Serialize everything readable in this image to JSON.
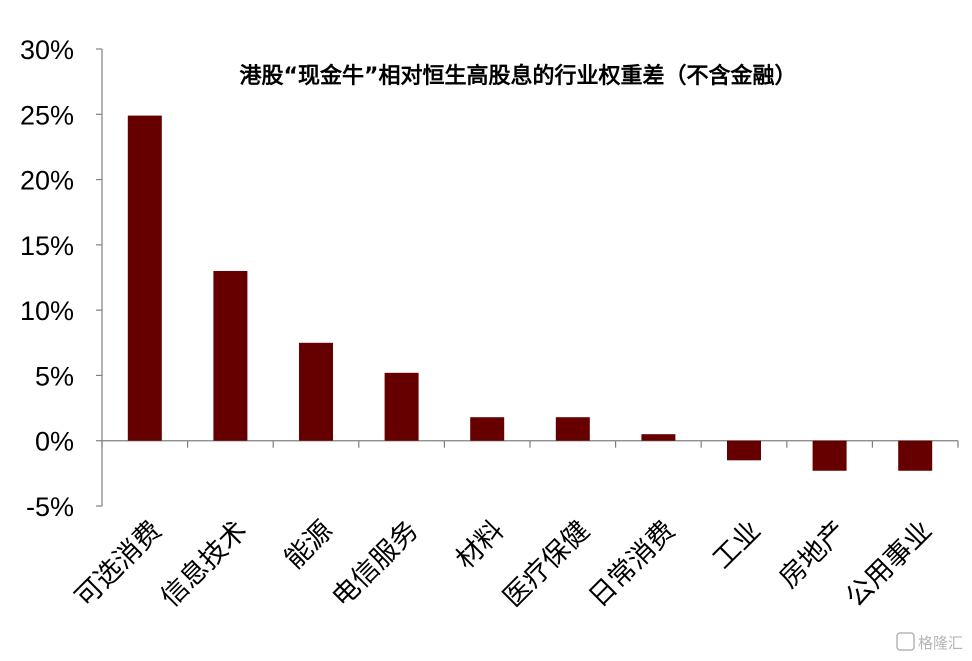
{
  "chart_data": {
    "type": "bar",
    "title": "港股“现金牛”相对恒生高股息的行业权重差（不含金融）",
    "xlabel": "",
    "ylabel": "",
    "ylim": [
      -5,
      30
    ],
    "yticks": [
      -5,
      0,
      5,
      10,
      15,
      20,
      25,
      30
    ],
    "ytick_format": "percent",
    "categories": [
      "可选消费",
      "信息技术",
      "能源",
      "电信服务",
      "材料",
      "医疗保健",
      "日常消费",
      "工业",
      "房地产",
      "公用事业"
    ],
    "values": [
      24.9,
      13.0,
      7.5,
      5.2,
      1.8,
      1.8,
      0.5,
      -1.5,
      -2.3,
      -2.3
    ],
    "bar_color": "#660000",
    "grid": false,
    "legend": "none"
  },
  "watermark": "格隆汇"
}
